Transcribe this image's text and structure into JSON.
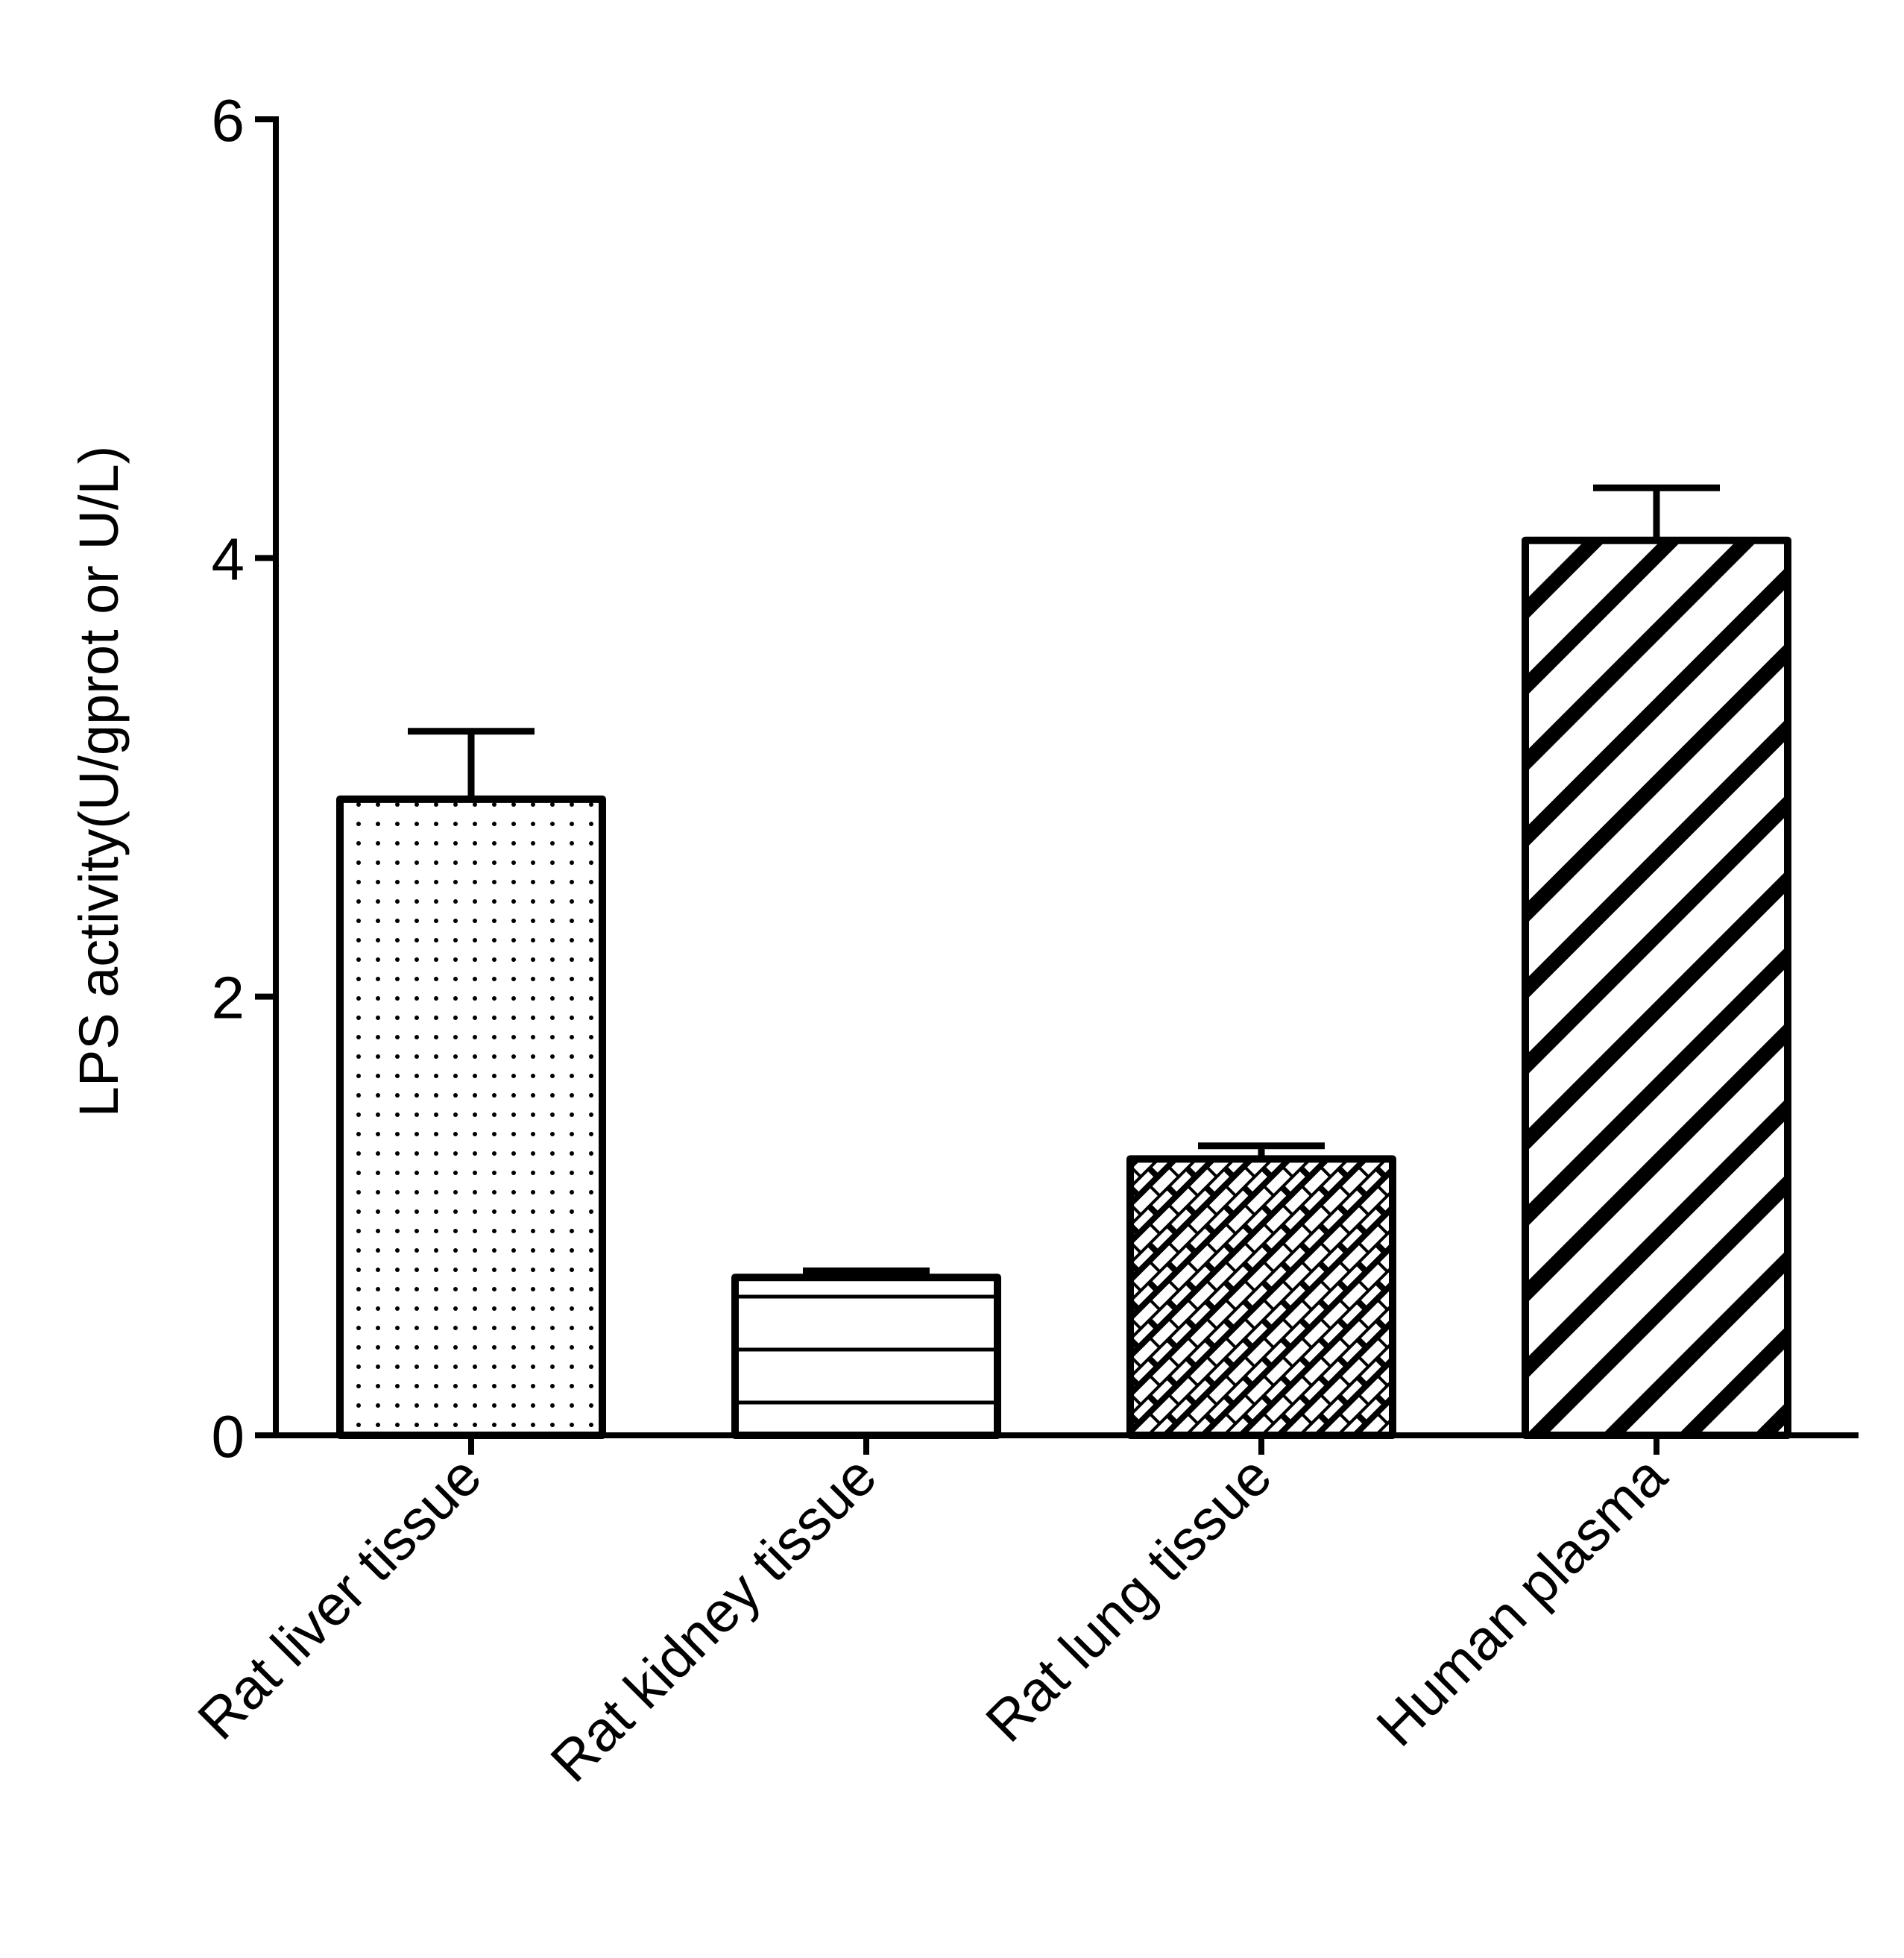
{
  "chart_data": {
    "type": "bar",
    "title": "",
    "xlabel": "",
    "ylabel": "LPS activity(U/gprot or U/L)",
    "categories": [
      "Rat liver tissue",
      "Rat kidney tissue",
      "Rat lung tissue",
      "Human plasma"
    ],
    "values": [
      2.9,
      0.72,
      1.26,
      4.08
    ],
    "error_upper": [
      3.21,
      0.75,
      1.32,
      4.32
    ],
    "ylim": [
      0,
      6
    ],
    "yticks": [
      "0",
      "2",
      "4",
      "6"
    ],
    "grid": false,
    "legend": "none",
    "fill_patterns": [
      "dots",
      "horizontal-lines",
      "crosshatch-bricks",
      "diagonal-stripes"
    ],
    "colors": {
      "stroke": "#000000",
      "fill": "#ffffff"
    }
  }
}
